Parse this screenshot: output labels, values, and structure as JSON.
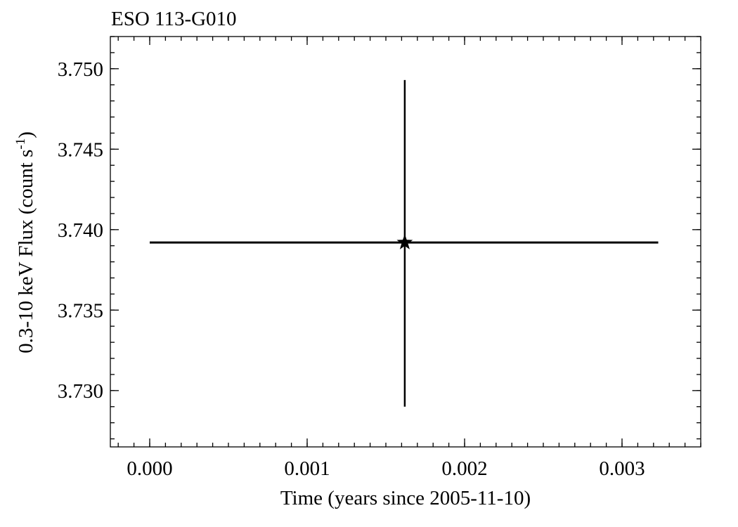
{
  "chart_data": {
    "type": "scatter",
    "title": "ESO 113-G010",
    "xlabel": "Time (years since 2005-11-10)",
    "ylabel_main": "0.3-10 keV Flux (count s",
    "ylabel_sup": "-1",
    "ylabel_close": ")",
    "xlim": [
      -0.00025,
      0.0035
    ],
    "ylim": [
      3.7265,
      3.752
    ],
    "x_major_ticks": [
      0.0,
      0.001,
      0.002,
      0.003
    ],
    "x_tick_labels": [
      "0.000",
      "0.001",
      "0.002",
      "0.003"
    ],
    "x_minor_step": 0.0001,
    "y_major_ticks": [
      3.73,
      3.735,
      3.74,
      3.745,
      3.75
    ],
    "y_tick_labels": [
      "3.730",
      "3.735",
      "3.740",
      "3.745",
      "3.750"
    ],
    "y_minor_step": 0.001,
    "grid": false,
    "points": [
      {
        "x": 0.00162,
        "y": 3.7392,
        "xerr_low": 0.00162,
        "xerr_high": 0.00161,
        "yerr_low": 0.0102,
        "yerr_high": 0.0101,
        "marker": "star"
      }
    ]
  }
}
